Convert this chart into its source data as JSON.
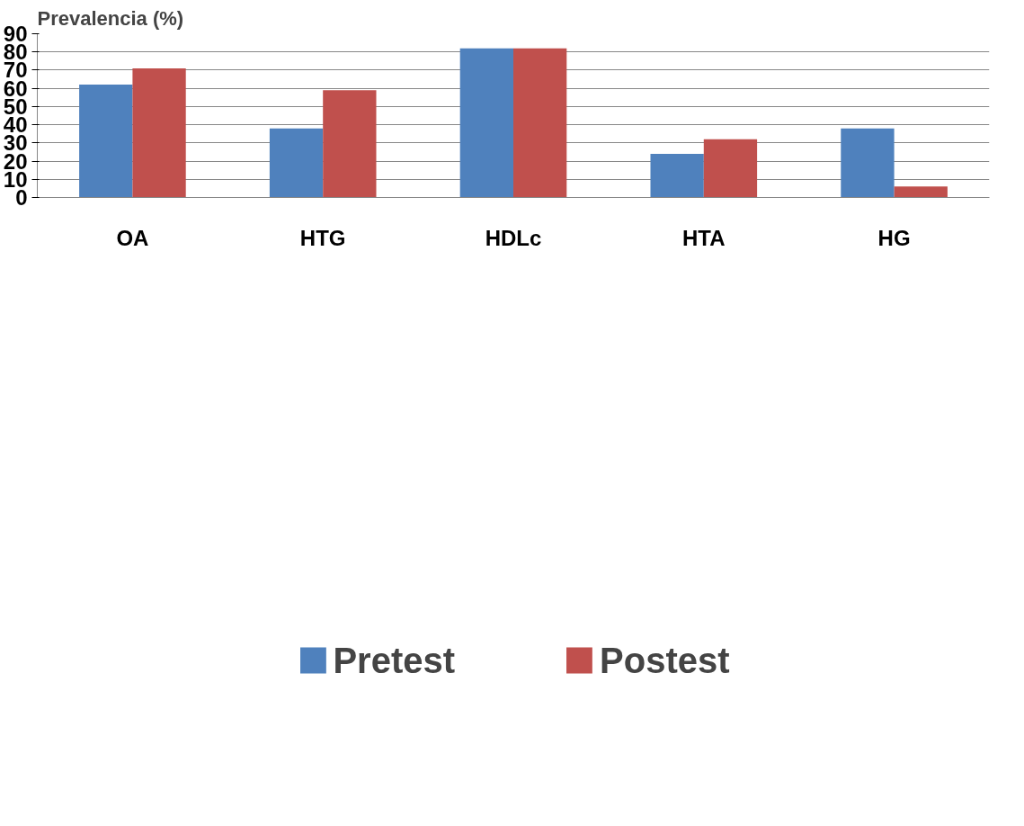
{
  "chart_data": {
    "type": "bar",
    "ylabel": "Prevalencia (%)",
    "categories": [
      "OA",
      "HTG",
      "HDLc",
      "HTA",
      "HG"
    ],
    "series": [
      {
        "name": "Pretest",
        "color": "#4f81bd",
        "values": [
          62,
          38,
          82,
          24,
          38
        ]
      },
      {
        "name": "Postest",
        "color": "#c0504d",
        "values": [
          71,
          59,
          82,
          32,
          6
        ]
      }
    ],
    "ylim": [
      0,
      90
    ],
    "yticks": [
      0,
      10,
      20,
      30,
      40,
      50,
      60,
      70,
      80,
      90
    ],
    "grid": "y",
    "legend": "bottom"
  }
}
